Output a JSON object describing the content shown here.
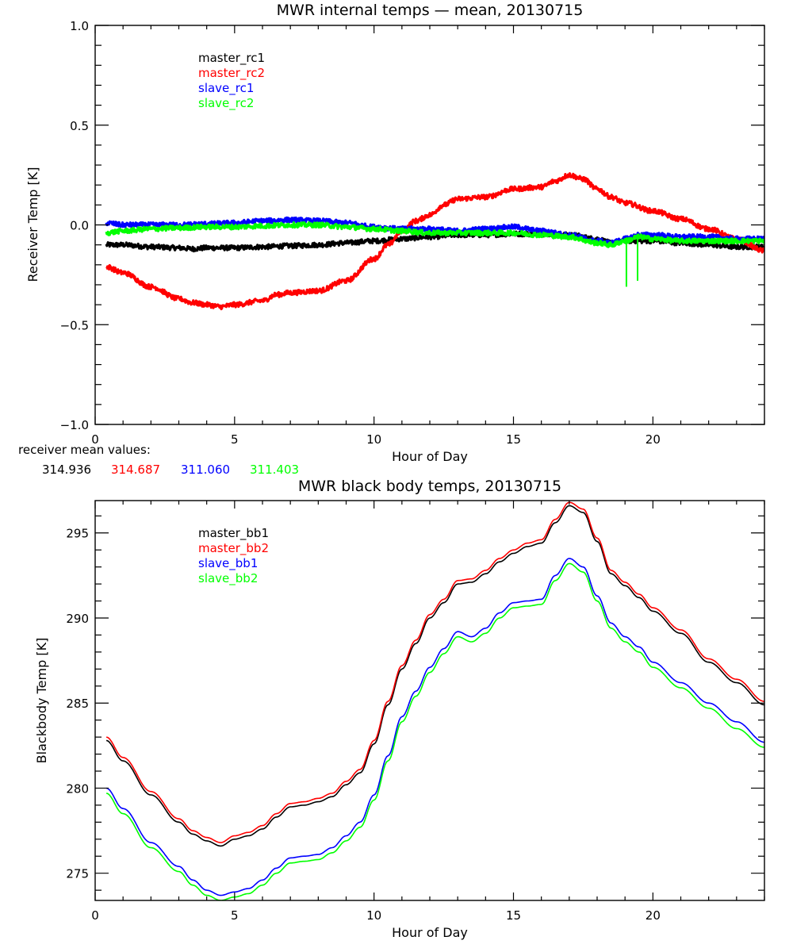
{
  "chart_data": [
    {
      "type": "line",
      "title": "MWR internal temps — mean, 20130715",
      "xlabel": "Hour of Day",
      "ylabel": "Receiver Temp [K]",
      "xlim": [
        0,
        24
      ],
      "ylim": [
        -1.0,
        1.0
      ],
      "x_major_ticks": [
        0,
        5,
        10,
        15,
        20
      ],
      "x_tick_labels": [
        "0",
        "5",
        "10",
        "15",
        "20"
      ],
      "x_minor_step": 1,
      "y_major_ticks": [
        -1.0,
        -0.5,
        0.0,
        0.5,
        1.0
      ],
      "y_tick_labels": [
        "−1.0",
        "−0.5",
        "0.0",
        "0.5",
        "1.0"
      ],
      "y_minor_step": 0.1,
      "grid": false,
      "legend_position": "top-left",
      "noise_amplitude": 0.012,
      "annotation": {
        "label": "receiver mean values:",
        "values": [
          {
            "text": "314.936",
            "color": "#000000"
          },
          {
            "text": "314.687",
            "color": "#ff0000"
          },
          {
            "text": "311.060",
            "color": "#0000ff"
          },
          {
            "text": "311.403",
            "color": "#00ff00"
          }
        ]
      },
      "series": [
        {
          "name": "master_rc1",
          "color": "#000000",
          "x": [
            0.4,
            1,
            2,
            3,
            3.5,
            4,
            5,
            6,
            7,
            8,
            9,
            10,
            11,
            12,
            13,
            14,
            15,
            16,
            17,
            18,
            18.5,
            19,
            19.5,
            20,
            21,
            22,
            23,
            24
          ],
          "y": [
            -0.1,
            -0.1,
            -0.11,
            -0.115,
            -0.12,
            -0.115,
            -0.115,
            -0.11,
            -0.105,
            -0.1,
            -0.09,
            -0.08,
            -0.07,
            -0.06,
            -0.05,
            -0.05,
            -0.045,
            -0.045,
            -0.05,
            -0.07,
            -0.09,
            -0.08,
            -0.08,
            -0.08,
            -0.09,
            -0.1,
            -0.11,
            -0.11
          ]
        },
        {
          "name": "master_rc2",
          "color": "#ff0000",
          "x": [
            0.4,
            1,
            2,
            3,
            3.5,
            4,
            4.5,
            5,
            6,
            6.5,
            7,
            8,
            9,
            10,
            10.5,
            11,
            11.5,
            12,
            12.5,
            13,
            14,
            15,
            16,
            16.5,
            17,
            17.5,
            18,
            18.5,
            19,
            20,
            21,
            22,
            23,
            24
          ],
          "y": [
            -0.21,
            -0.24,
            -0.31,
            -0.37,
            -0.39,
            -0.4,
            -0.41,
            -0.4,
            -0.38,
            -0.35,
            -0.34,
            -0.33,
            -0.28,
            -0.17,
            -0.1,
            -0.03,
            0.02,
            0.05,
            0.1,
            0.13,
            0.14,
            0.18,
            0.19,
            0.22,
            0.25,
            0.23,
            0.18,
            0.14,
            0.11,
            0.07,
            0.03,
            -0.02,
            -0.07,
            -0.13
          ]
        },
        {
          "name": "slave_rc1",
          "color": "#0000ff",
          "x": [
            0.4,
            1,
            2,
            3,
            4,
            5,
            6,
            7,
            8,
            9,
            10,
            11,
            12,
            13,
            14,
            15,
            16,
            17,
            18,
            18.5,
            19,
            19.5,
            20,
            21,
            22,
            23,
            24
          ],
          "y": [
            0.01,
            0.0,
            0.0,
            0.0,
            0.005,
            0.01,
            0.02,
            0.025,
            0.02,
            0.01,
            -0.01,
            -0.02,
            -0.02,
            -0.03,
            -0.02,
            -0.01,
            -0.03,
            -0.05,
            -0.08,
            -0.09,
            -0.07,
            -0.05,
            -0.05,
            -0.06,
            -0.06,
            -0.07,
            -0.07
          ]
        },
        {
          "name": "slave_rc2",
          "color": "#00ff00",
          "x": [
            0.4,
            1,
            2,
            3,
            4,
            5,
            6,
            7,
            8,
            9,
            10,
            11,
            12,
            13,
            14,
            15,
            16,
            17,
            18,
            18.5,
            19,
            19.5,
            20,
            21,
            22,
            23,
            24
          ],
          "y": [
            -0.04,
            -0.03,
            -0.02,
            -0.015,
            -0.01,
            -0.01,
            -0.005,
            0.0,
            0.0,
            -0.01,
            -0.02,
            -0.03,
            -0.04,
            -0.04,
            -0.04,
            -0.04,
            -0.05,
            -0.06,
            -0.09,
            -0.1,
            -0.08,
            -0.06,
            -0.07,
            -0.08,
            -0.08,
            -0.08,
            -0.08
          ]
        }
      ],
      "spikes": [
        {
          "series": "slave_rc2",
          "x": 19.05,
          "y": -0.31
        },
        {
          "series": "slave_rc2",
          "x": 19.45,
          "y": -0.28
        }
      ]
    },
    {
      "type": "line",
      "title": "MWR black body temps, 20130715",
      "xlabel": "Hour of Day",
      "ylabel": "Blackbody Temp [K]",
      "xlim": [
        0,
        24
      ],
      "ylim": [
        273.4,
        296.9
      ],
      "x_major_ticks": [
        0,
        5,
        10,
        15,
        20
      ],
      "x_tick_labels": [
        "0",
        "5",
        "10",
        "15",
        "20"
      ],
      "x_minor_step": 1,
      "y_major_ticks": [
        275,
        280,
        285,
        290,
        295
      ],
      "y_tick_labels": [
        "275",
        "280",
        "285",
        "290",
        "295"
      ],
      "y_minor_step": 1,
      "grid": false,
      "legend_position": "top-left",
      "series": [
        {
          "name": "master_bb1",
          "color": "#000000",
          "x": [
            0.4,
            1,
            2,
            3,
            3.5,
            4,
            4.5,
            5,
            5.5,
            6,
            6.5,
            7,
            7.5,
            8,
            8.5,
            9,
            9.5,
            10,
            10.5,
            11,
            11.5,
            12,
            12.5,
            13,
            13.5,
            14,
            14.5,
            15,
            15.5,
            16,
            16.5,
            17,
            17.5,
            18,
            18.5,
            19,
            19.5,
            20,
            21,
            22,
            23,
            24
          ],
          "y": [
            282.8,
            281.6,
            279.6,
            278.0,
            277.3,
            276.9,
            276.6,
            277.0,
            277.2,
            277.6,
            278.3,
            278.9,
            279.0,
            279.2,
            279.5,
            280.2,
            280.9,
            282.6,
            284.9,
            287.0,
            288.5,
            290.0,
            290.9,
            292.0,
            292.1,
            292.6,
            293.3,
            293.8,
            294.2,
            294.4,
            295.6,
            296.6,
            296.2,
            294.5,
            292.6,
            291.9,
            291.2,
            290.4,
            289.1,
            287.4,
            286.2,
            284.9
          ]
        },
        {
          "name": "master_bb2",
          "color": "#ff0000",
          "x": [
            0.4,
            1,
            2,
            3,
            3.5,
            4,
            4.5,
            5,
            5.5,
            6,
            6.5,
            7,
            7.5,
            8,
            8.5,
            9,
            9.5,
            10,
            10.5,
            11,
            11.5,
            12,
            12.5,
            13,
            13.5,
            14,
            14.5,
            15,
            15.5,
            16,
            16.5,
            17,
            17.5,
            18,
            18.5,
            19,
            19.5,
            20,
            21,
            22,
            23,
            24
          ],
          "y": [
            283.0,
            281.8,
            279.8,
            278.2,
            277.5,
            277.1,
            276.8,
            277.2,
            277.4,
            277.8,
            278.5,
            279.1,
            279.2,
            279.4,
            279.7,
            280.4,
            281.1,
            282.8,
            285.1,
            287.2,
            288.7,
            290.2,
            291.1,
            292.2,
            292.3,
            292.8,
            293.5,
            294.0,
            294.4,
            294.6,
            295.8,
            296.8,
            296.4,
            294.7,
            292.8,
            292.1,
            291.4,
            290.6,
            289.3,
            287.6,
            286.4,
            285.1
          ]
        },
        {
          "name": "slave_bb1",
          "color": "#0000ff",
          "x": [
            0.4,
            1,
            2,
            3,
            3.5,
            4,
            4.5,
            5,
            5.5,
            6,
            6.5,
            7,
            7.5,
            8,
            8.5,
            9,
            9.5,
            10,
            10.5,
            11,
            11.5,
            12,
            12.5,
            13,
            13.5,
            14,
            14.5,
            15,
            15.5,
            16,
            16.5,
            17,
            17.5,
            18,
            18.5,
            19,
            19.5,
            20,
            21,
            22,
            23,
            24
          ],
          "y": [
            280.0,
            278.8,
            276.8,
            275.4,
            274.6,
            274.0,
            273.7,
            273.9,
            274.1,
            274.6,
            275.3,
            275.9,
            276.0,
            276.1,
            276.5,
            277.2,
            278.0,
            279.6,
            281.9,
            284.2,
            285.7,
            287.1,
            288.2,
            289.2,
            288.9,
            289.4,
            290.3,
            290.9,
            291.0,
            291.1,
            292.5,
            293.5,
            293.0,
            291.3,
            289.7,
            288.9,
            288.3,
            287.4,
            286.2,
            285.0,
            283.9,
            282.7
          ]
        },
        {
          "name": "slave_bb2",
          "color": "#00ff00",
          "x": [
            0.4,
            1,
            2,
            3,
            3.5,
            4,
            4.5,
            5,
            5.5,
            6,
            6.5,
            7,
            7.5,
            8,
            8.5,
            9,
            9.5,
            10,
            10.5,
            11,
            11.5,
            12,
            12.5,
            13,
            13.5,
            14,
            14.5,
            15,
            15.5,
            16,
            16.5,
            17,
            17.5,
            18,
            18.5,
            19,
            19.5,
            20,
            21,
            22,
            23,
            24
          ],
          "y": [
            279.7,
            278.5,
            276.5,
            275.1,
            274.3,
            273.7,
            273.4,
            273.6,
            273.8,
            274.3,
            275.0,
            275.6,
            275.7,
            275.8,
            276.2,
            276.9,
            277.7,
            279.3,
            281.6,
            283.9,
            285.4,
            286.8,
            287.9,
            288.9,
            288.6,
            289.1,
            290.0,
            290.6,
            290.7,
            290.8,
            292.2,
            293.2,
            292.7,
            291.0,
            289.4,
            288.6,
            288.0,
            287.1,
            285.9,
            284.7,
            283.5,
            282.4
          ]
        }
      ]
    }
  ]
}
